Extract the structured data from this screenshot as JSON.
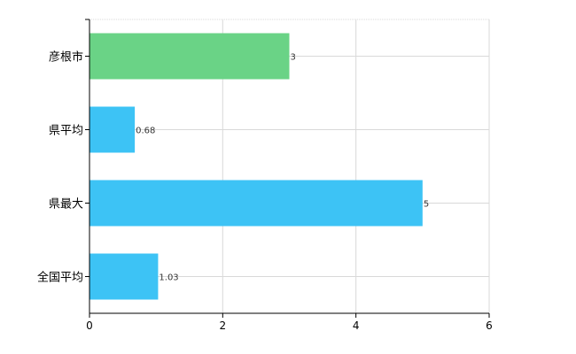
{
  "chart_data": {
    "type": "bar",
    "orientation": "horizontal",
    "categories": [
      "彦根市",
      "県平均",
      "県最大",
      "全国平均"
    ],
    "values": [
      3,
      0.68,
      5,
      1.03
    ],
    "data_labels": [
      "3",
      "0.68",
      "5",
      "1.03"
    ],
    "bar_colors": [
      "#6ad386",
      "#3dc3f5",
      "#3dc3f5",
      "#3dc3f5"
    ],
    "xlim": [
      0,
      6
    ],
    "xticks": [
      0,
      2,
      4,
      6
    ],
    "xtick_labels": [
      "0",
      "2",
      "4",
      "6"
    ],
    "grid": true,
    "title": "",
    "xlabel": "",
    "ylabel": ""
  }
}
